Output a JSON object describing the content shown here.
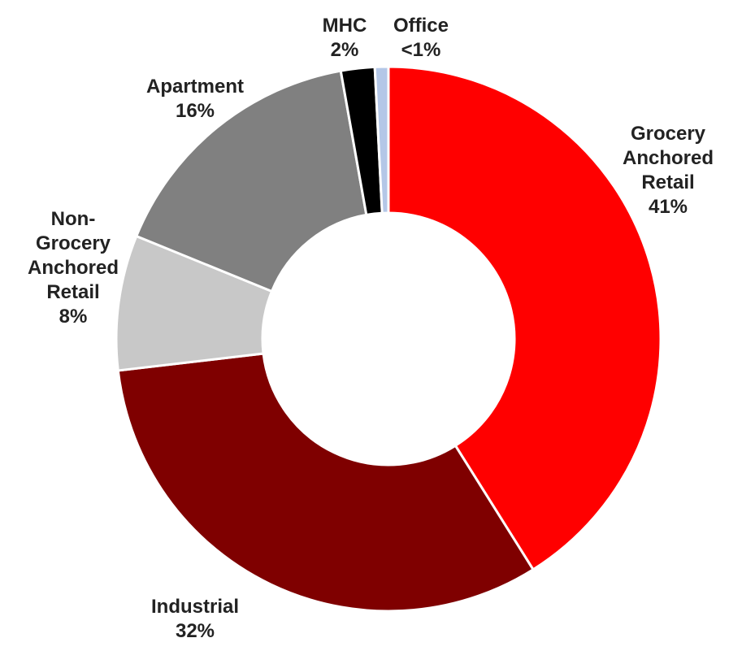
{
  "chart_data": {
    "type": "donut",
    "categories": [
      "Grocery Anchored Retail",
      "Industrial",
      "Non-Grocery Anchored Retail",
      "Apartment",
      "MHC",
      "Office"
    ],
    "values": [
      41,
      32,
      8,
      16,
      2,
      0.8
    ],
    "value_labels": [
      "41%",
      "32%",
      "8%",
      "16%",
      "2%",
      "<1%"
    ],
    "colors": [
      "#ff0000",
      "#7f0000",
      "#c8c8c8",
      "#808080",
      "#000000",
      "#b4c7e7"
    ]
  }
}
